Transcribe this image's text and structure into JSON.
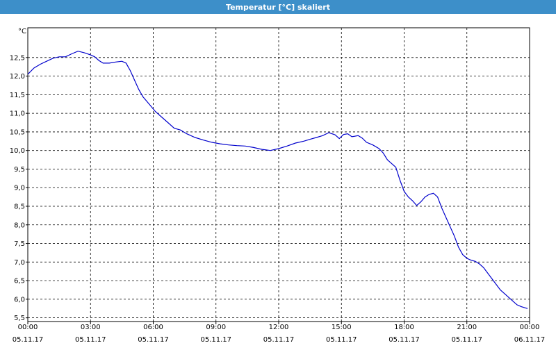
{
  "window": {
    "title": "Temperatur [°C] skaliert"
  },
  "colors": {
    "titlebar": "#3d8fc9",
    "line": "#0000cc",
    "grid": "#000000"
  },
  "chart_data": {
    "type": "line",
    "title": "Temperatur [°C] skaliert",
    "ylabel": "°C",
    "xlabel": "",
    "ylim": [
      5.4,
      13.3
    ],
    "xlim": [
      0,
      24
    ],
    "grid": true,
    "yticks": [
      {
        "v": 5.5,
        "label": "5,5"
      },
      {
        "v": 6.0,
        "label": "6,0"
      },
      {
        "v": 6.5,
        "label": "6,5"
      },
      {
        "v": 7.0,
        "label": "7,0"
      },
      {
        "v": 7.5,
        "label": "7,5"
      },
      {
        "v": 8.0,
        "label": "8,0"
      },
      {
        "v": 8.5,
        "label": "8,5"
      },
      {
        "v": 9.0,
        "label": "9,0"
      },
      {
        "v": 9.5,
        "label": "9,5"
      },
      {
        "v": 10.0,
        "label": "10,0"
      },
      {
        "v": 10.5,
        "label": "10,5"
      },
      {
        "v": 11.0,
        "label": "11,0"
      },
      {
        "v": 11.5,
        "label": "11,5"
      },
      {
        "v": 12.0,
        "label": "12,0"
      },
      {
        "v": 12.5,
        "label": "12,5"
      }
    ],
    "xticks": [
      {
        "h": 0,
        "time": "00:00",
        "date": "05.11.17"
      },
      {
        "h": 3,
        "time": "03:00",
        "date": "05.11.17"
      },
      {
        "h": 6,
        "time": "06:00",
        "date": "05.11.17"
      },
      {
        "h": 9,
        "time": "09:00",
        "date": "05.11.17"
      },
      {
        "h": 12,
        "time": "12:00",
        "date": "05.11.17"
      },
      {
        "h": 15,
        "time": "15:00",
        "date": "05.11.17"
      },
      {
        "h": 18,
        "time": "18:00",
        "date": "05.11.17"
      },
      {
        "h": 21,
        "time": "21:00",
        "date": "05.11.17"
      },
      {
        "h": 24,
        "time": "00:00",
        "date": "06.11.17"
      }
    ],
    "series": [
      {
        "values": [
          [
            0.0,
            12.05
          ],
          [
            0.3,
            12.22
          ],
          [
            0.6,
            12.32
          ],
          [
            0.9,
            12.4
          ],
          [
            1.2,
            12.48
          ],
          [
            1.5,
            12.52
          ],
          [
            1.8,
            12.52
          ],
          [
            2.1,
            12.6
          ],
          [
            2.4,
            12.67
          ],
          [
            2.7,
            12.63
          ],
          [
            3.0,
            12.57
          ],
          [
            3.2,
            12.52
          ],
          [
            3.4,
            12.42
          ],
          [
            3.6,
            12.35
          ],
          [
            3.9,
            12.35
          ],
          [
            4.2,
            12.38
          ],
          [
            4.5,
            12.4
          ],
          [
            4.7,
            12.35
          ],
          [
            4.9,
            12.15
          ],
          [
            5.1,
            11.9
          ],
          [
            5.3,
            11.65
          ],
          [
            5.5,
            11.45
          ],
          [
            5.8,
            11.25
          ],
          [
            6.1,
            11.05
          ],
          [
            6.4,
            10.9
          ],
          [
            6.7,
            10.75
          ],
          [
            7.0,
            10.6
          ],
          [
            7.3,
            10.55
          ],
          [
            7.6,
            10.45
          ],
          [
            8.0,
            10.35
          ],
          [
            8.4,
            10.28
          ],
          [
            8.8,
            10.22
          ],
          [
            9.2,
            10.18
          ],
          [
            9.6,
            10.15
          ],
          [
            10.0,
            10.13
          ],
          [
            10.4,
            10.12
          ],
          [
            10.8,
            10.08
          ],
          [
            11.2,
            10.03
          ],
          [
            11.6,
            10.0
          ],
          [
            12.0,
            10.05
          ],
          [
            12.4,
            10.12
          ],
          [
            12.8,
            10.2
          ],
          [
            13.2,
            10.25
          ],
          [
            13.5,
            10.3
          ],
          [
            13.8,
            10.35
          ],
          [
            14.1,
            10.4
          ],
          [
            14.4,
            10.48
          ],
          [
            14.7,
            10.42
          ],
          [
            14.9,
            10.32
          ],
          [
            15.1,
            10.43
          ],
          [
            15.3,
            10.45
          ],
          [
            15.5,
            10.37
          ],
          [
            15.8,
            10.4
          ],
          [
            16.0,
            10.33
          ],
          [
            16.2,
            10.22
          ],
          [
            16.5,
            10.15
          ],
          [
            16.8,
            10.05
          ],
          [
            17.0,
            9.93
          ],
          [
            17.2,
            9.75
          ],
          [
            17.4,
            9.65
          ],
          [
            17.6,
            9.55
          ],
          [
            17.8,
            9.2
          ],
          [
            18.0,
            8.9
          ],
          [
            18.2,
            8.75
          ],
          [
            18.4,
            8.65
          ],
          [
            18.6,
            8.52
          ],
          [
            18.8,
            8.62
          ],
          [
            19.0,
            8.75
          ],
          [
            19.2,
            8.82
          ],
          [
            19.4,
            8.85
          ],
          [
            19.6,
            8.75
          ],
          [
            19.8,
            8.45
          ],
          [
            20.0,
            8.2
          ],
          [
            20.2,
            7.95
          ],
          [
            20.4,
            7.7
          ],
          [
            20.6,
            7.4
          ],
          [
            20.8,
            7.2
          ],
          [
            21.0,
            7.1
          ],
          [
            21.2,
            7.05
          ],
          [
            21.4,
            7.02
          ],
          [
            21.6,
            6.95
          ],
          [
            21.8,
            6.85
          ],
          [
            22.0,
            6.7
          ],
          [
            22.2,
            6.55
          ],
          [
            22.4,
            6.4
          ],
          [
            22.6,
            6.25
          ],
          [
            22.8,
            6.15
          ],
          [
            23.0,
            6.05
          ],
          [
            23.2,
            5.95
          ],
          [
            23.4,
            5.85
          ],
          [
            23.6,
            5.8
          ],
          [
            23.9,
            5.75
          ]
        ]
      }
    ]
  }
}
